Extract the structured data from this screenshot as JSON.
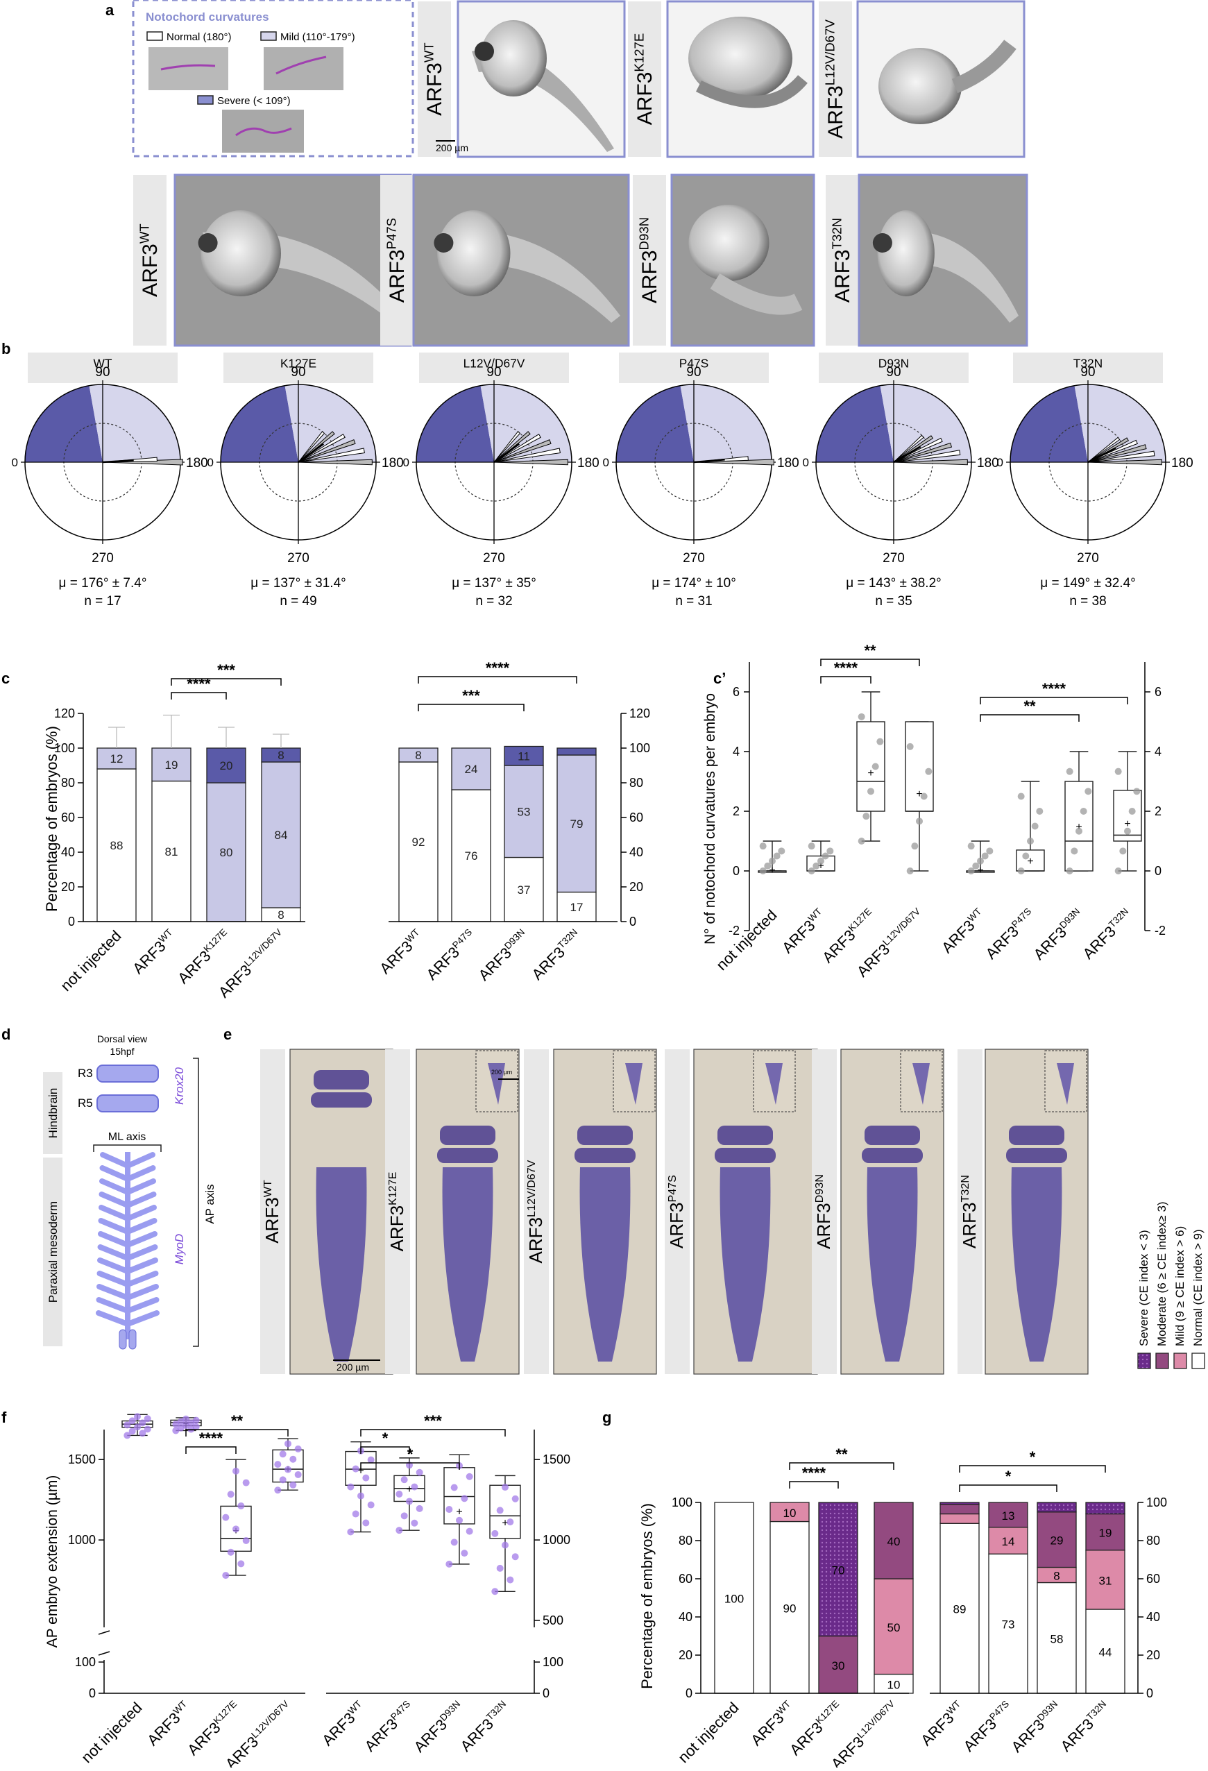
{
  "figure": {
    "panel_letters": [
      "a",
      "b",
      "c",
      "c’",
      "d",
      "e",
      "f",
      "g"
    ]
  },
  "panel_a": {
    "legend_title": "Notochord curvatures",
    "legend_normal": "Normal (180°)",
    "legend_mild": "Mild (110°-179°)",
    "legend_severe": "Severe (< 109°)",
    "scale_bar": "200 µm",
    "row1_labels": [
      {
        "base": "ARF3",
        "sup": "WT"
      },
      {
        "base": "ARF3",
        "sup": "K127E"
      },
      {
        "base": "ARF3",
        "sup": "L12V/D67V"
      }
    ],
    "row2_labels": [
      {
        "base": "ARF3",
        "sup": "WT"
      },
      {
        "base": "ARF3",
        "sup": "P47S"
      },
      {
        "base": "ARF3",
        "sup": "D93N"
      },
      {
        "base": "ARF3",
        "sup": "T32N"
      }
    ],
    "colors": {
      "frame": "#8a8fd0",
      "label_bg": "#e8e8e8"
    }
  },
  "panel_b": {
    "tick_90": "90",
    "tick_0": "0",
    "tick_180": "180",
    "tick_270": "270",
    "plots": [
      {
        "name": "ARF3",
        "sup": "WT",
        "mu": "μ = 176° ± 7.4°",
        "n": "n = 17",
        "spread": 6
      },
      {
        "name": "ARF3",
        "sup": "K127E",
        "mu": "μ = 137° ± 31.4°",
        "n": "n = 49",
        "spread": 60
      },
      {
        "name": "ARF3",
        "sup": "L12V/D67V",
        "mu": "μ = 137° ± 35°",
        "n": "n = 32",
        "spread": 60
      },
      {
        "name": "ARF3",
        "sup": "P47S",
        "mu": "μ = 174° ± 10°",
        "n": "n = 31",
        "spread": 8
      },
      {
        "name": "ARF3",
        "sup": "D93N",
        "mu": "μ = 143° ± 38.2°",
        "n": "n = 35",
        "spread": 50
      },
      {
        "name": "ARF3",
        "sup": "T32N",
        "mu": "μ = 149° ± 32.4°",
        "n": "n = 38",
        "spread": 45
      }
    ],
    "colors": {
      "severe": "#5a5aa8",
      "mild": "#d6d6ec"
    }
  },
  "chart_data": [
    {
      "id": "c_left",
      "type": "bar",
      "stacked": true,
      "ylabel": "Percentage of embryos (%)",
      "ylim": [
        0,
        120
      ],
      "categories": [
        "not injected",
        "ARF3 WT",
        "ARF3 K127E",
        "ARF3 L12V/D67V"
      ],
      "series": [
        {
          "name": "Normal",
          "values": [
            88,
            81,
            0,
            8
          ]
        },
        {
          "name": "Mild",
          "values": [
            12,
            19,
            80,
            84
          ]
        },
        {
          "name": "Severe",
          "values": [
            0,
            0,
            20,
            8
          ]
        }
      ],
      "labels": [
        [
          "88",
          "12",
          ""
        ],
        [
          "81",
          "19",
          ""
        ],
        [
          "",
          "80",
          "20"
        ],
        [
          "8",
          "84",
          "8"
        ]
      ],
      "error_tops": [
        112,
        119,
        112,
        108
      ],
      "significance": [
        {
          "from": 1,
          "to": 2,
          "text": "****"
        },
        {
          "from": 1,
          "to": 3,
          "text": "***"
        }
      ]
    },
    {
      "id": "c_right",
      "type": "bar",
      "stacked": true,
      "ylim": [
        0,
        120
      ],
      "categories": [
        "ARF3 WT",
        "ARF3 P47S",
        "ARF3 D93N",
        "ARF3 T32N"
      ],
      "series": [
        {
          "name": "Normal",
          "values": [
            92,
            76,
            37,
            17
          ]
        },
        {
          "name": "Mild",
          "values": [
            8,
            24,
            53,
            79
          ]
        },
        {
          "name": "Severe",
          "values": [
            0,
            0,
            11,
            4
          ]
        }
      ],
      "labels": [
        [
          "92",
          "8",
          ""
        ],
        [
          "76",
          "24",
          ""
        ],
        [
          "37",
          "53",
          "11"
        ],
        [
          "17",
          "79",
          ""
        ]
      ],
      "significance": [
        {
          "from": 0,
          "to": 2,
          "text": "***"
        },
        {
          "from": 0,
          "to": 3,
          "text": "****"
        }
      ]
    },
    {
      "id": "c_prime",
      "type": "box",
      "ylabel": "N° of notochord curvatures per embryo",
      "ylim": [
        -2,
        7
      ],
      "ticks": [
        -2,
        0,
        2,
        4,
        6
      ],
      "categories": [
        "not injected",
        "ARF3 WT",
        "ARF3 K127E",
        "ARF3 L12V/D67V",
        "ARF3 WT",
        "ARF3 P47S",
        "ARF3 D93N",
        "ARF3 T32N"
      ],
      "boxes": [
        {
          "min": 0,
          "q1": 0,
          "med": 0,
          "q3": 0,
          "max": 1,
          "mean": 0.05
        },
        {
          "min": 0,
          "q1": 0,
          "med": 0,
          "q3": 0.5,
          "max": 1,
          "mean": 0.2
        },
        {
          "min": 1,
          "q1": 2,
          "med": 3,
          "q3": 5,
          "max": 6,
          "mean": 3.3
        },
        {
          "min": 0,
          "q1": 2,
          "med": 2,
          "q3": 5,
          "max": 5,
          "mean": 2.6
        },
        {
          "min": 0,
          "q1": 0,
          "med": 0,
          "q3": 0,
          "max": 1,
          "mean": 0.05
        },
        {
          "min": 0,
          "q1": 0,
          "med": 0,
          "q3": 0.7,
          "max": 3,
          "mean": 0.35
        },
        {
          "min": 0,
          "q1": 0,
          "med": 1,
          "q3": 3,
          "max": 4,
          "mean": 1.5
        },
        {
          "min": 0,
          "q1": 1,
          "med": 1.2,
          "q3": 2.7,
          "max": 4,
          "mean": 1.6
        }
      ],
      "significance": [
        {
          "from": 1,
          "to": 2,
          "text": "****"
        },
        {
          "from": 1,
          "to": 3,
          "text": "**"
        },
        {
          "from": 4,
          "to": 6,
          "text": "**"
        },
        {
          "from": 4,
          "to": 7,
          "text": "****"
        }
      ]
    },
    {
      "id": "f",
      "type": "box",
      "ylabel": "AP embryo extension (µm)",
      "ticks_upper": [
        1000,
        1500
      ],
      "ticks_lower": [
        0,
        100
      ],
      "ticks_right_upper": [
        500,
        1000,
        1500
      ],
      "categories": [
        "not injected",
        "ARF3 WT",
        "ARF3 K127E",
        "ARF3 L12V/D67V",
        "ARF3 WT",
        "ARF3 P47S",
        "ARF3 D93N",
        "ARF3 T32N"
      ],
      "boxes": [
        {
          "min": 1650,
          "q1": 1700,
          "med": 1720,
          "q3": 1740,
          "max": 1780,
          "mean": 1720
        },
        {
          "min": 1680,
          "q1": 1710,
          "med": 1730,
          "q3": 1745,
          "max": 1760,
          "mean": 1725
        },
        {
          "min": 780,
          "q1": 930,
          "med": 1010,
          "q3": 1210,
          "max": 1500,
          "mean": 1060
        },
        {
          "min": 1310,
          "q1": 1360,
          "med": 1440,
          "q3": 1560,
          "max": 1630,
          "mean": 1445
        },
        {
          "min": 1050,
          "q1": 1340,
          "med": 1440,
          "q3": 1550,
          "max": 1610,
          "mean": 1435
        },
        {
          "min": 1060,
          "q1": 1240,
          "med": 1320,
          "q3": 1400,
          "max": 1510,
          "mean": 1320
        },
        {
          "min": 850,
          "q1": 1100,
          "med": 1270,
          "q3": 1450,
          "max": 1530,
          "mean": 1180
        },
        {
          "min": 680,
          "q1": 1010,
          "med": 1150,
          "q3": 1340,
          "max": 1400,
          "mean": 1110
        }
      ],
      "significance": [
        {
          "from": 1,
          "to": 2,
          "text": "****"
        },
        {
          "from": 1,
          "to": 3,
          "text": "**"
        },
        {
          "from": 4,
          "to": 5,
          "text": "*"
        },
        {
          "from": 4,
          "to": 6,
          "text": "*"
        },
        {
          "from": 4,
          "to": 7,
          "text": "***"
        }
      ]
    },
    {
      "id": "g",
      "type": "bar",
      "stacked": true,
      "ylabel": "Percentage of embryos (%)",
      "ylim": [
        0,
        100
      ],
      "categories": [
        "not injected",
        "ARF3 WT",
        "ARF3 K127E",
        "ARF3 L12V/D67V",
        "ARF3 WT",
        "ARF3 P47S",
        "ARF3 D93N",
        "ARF3 T32N"
      ],
      "series": [
        {
          "name": "Normal (CE index > 9)",
          "values": [
            100,
            90,
            0,
            10,
            89,
            73,
            58,
            44
          ]
        },
        {
          "name": "Mild (9 ≥ CE index > 6)",
          "values": [
            0,
            10,
            0,
            50,
            5,
            14,
            8,
            31
          ]
        },
        {
          "name": "Moderate (6 ≥ CE index≥ 3)",
          "values": [
            0,
            0,
            30,
            40,
            5,
            13,
            29,
            19
          ]
        },
        {
          "name": "Severe (CE index < 3)",
          "values": [
            0,
            0,
            70,
            0,
            1,
            0,
            5,
            6
          ]
        }
      ],
      "labels": [
        [
          "100",
          "",
          "",
          ""
        ],
        [
          "90",
          "10",
          "",
          ""
        ],
        [
          "",
          "",
          "30",
          "70"
        ],
        [
          "10",
          "50",
          "40",
          ""
        ],
        [
          "89",
          "",
          "",
          ""
        ],
        [
          "73",
          "14",
          "13",
          ""
        ],
        [
          "58",
          "8",
          "29",
          ""
        ],
        [
          "44",
          "31",
          "19",
          ""
        ]
      ],
      "significance": [
        {
          "from": 1,
          "to": 2,
          "text": "****"
        },
        {
          "from": 1,
          "to": 3,
          "text": "**"
        },
        {
          "from": 4,
          "to": 6,
          "text": "*"
        },
        {
          "from": 4,
          "to": 7,
          "text": "*"
        }
      ]
    }
  ],
  "panel_d": {
    "title1": "Dorsal view",
    "title2": "15hpf",
    "r3": "R3",
    "r5": "R5",
    "hindbrain": "Hindbrain",
    "paraxial": "Paraxial mesoderm",
    "ml_axis": "ML axis",
    "ap_axis": "AP axis",
    "krox20": "Krox20",
    "myod": "MyoD"
  },
  "panel_e": {
    "labels": [
      {
        "base": "ARF3",
        "sup": "WT"
      },
      {
        "base": "ARF3",
        "sup": "K127E"
      },
      {
        "base": "ARF3",
        "sup": "L12V/D67V"
      },
      {
        "base": "ARF3",
        "sup": "P47S"
      },
      {
        "base": "ARF3",
        "sup": "D93N"
      },
      {
        "base": "ARF3",
        "sup": "T32N"
      }
    ],
    "scale_main": "200 µm",
    "scale_inset": "200 µm",
    "legend": [
      "Severe (CE index < 3)",
      "Moderate (6 ≥ CE index≥ 3)",
      "Mild (9 ≥ CE index > 6)",
      "Normal (CE index > 9)"
    ],
    "colors": {
      "severe": "#6a2a8a",
      "moderate": "#934a80",
      "mild": "#dd8aa8",
      "normal": "#ffffff"
    }
  },
  "category_labels": {
    "not_injected": "not injected",
    "arf3": "ARF3",
    "WT": "WT",
    "K127E": "K127E",
    "L12V/D67V": "L12V/D67V",
    "P47S": "P47S",
    "D93N": "D93N",
    "T32N": "T32N"
  }
}
